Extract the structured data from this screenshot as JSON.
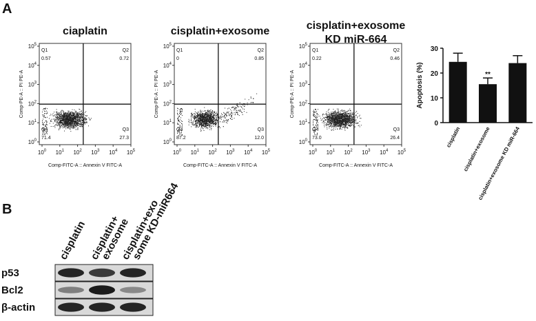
{
  "panel_labels": [
    "A",
    "B"
  ],
  "flow_plots": {
    "x_axis_label": "Comp-FITC-A :: Annexin V FITC-A",
    "y_axis_label": "Comp-PE-A :: PI PE-A",
    "tick_base": "10",
    "tick_exponents": [
      0,
      1,
      2,
      3,
      4,
      5
    ],
    "plots": [
      {
        "title": [
          "ciaplatin"
        ],
        "quadrants": [
          {
            "name": "Q1",
            "value": "0.57"
          },
          {
            "name": "Q2",
            "value": "0.72"
          },
          {
            "name": "Q4",
            "value": "71.4"
          },
          {
            "name": "Q3",
            "value": "27.3"
          }
        ]
      },
      {
        "title": [
          "cisplatin+exosome"
        ],
        "quadrants": [
          {
            "name": "Q1",
            "value": "0"
          },
          {
            "name": "Q2",
            "value": "0.85"
          },
          {
            "name": "Q4",
            "value": "87.2"
          },
          {
            "name": "Q3",
            "value": "12.0"
          }
        ]
      },
      {
        "title": [
          "cisplatin+exosome",
          "KD miR-664"
        ],
        "quadrants": [
          {
            "name": "Q1",
            "value": "0.22"
          },
          {
            "name": "Q2",
            "value": "0.46"
          },
          {
            "name": "Q4",
            "value": "73.0"
          },
          {
            "name": "Q3",
            "value": "26.4"
          }
        ]
      }
    ]
  },
  "chart_data": {
    "type": "bar",
    "y_label": "Apoptosis (%)",
    "categories": [
      "cisplatin",
      "cisplatin+exosome",
      "cisplatin+exosome KD miR-664"
    ],
    "values": [
      24.5,
      15.5,
      24
    ],
    "errors": [
      3.5,
      2.5,
      3
    ],
    "color": "#111111",
    "annotation": "**",
    "ylim": [
      0,
      30
    ],
    "yticks": [
      0,
      10,
      20,
      30
    ]
  },
  "western_blot": {
    "columns": [
      [
        "cisplatin"
      ],
      [
        "cisplatin+",
        "exosome"
      ],
      [
        "cisplatin+exo",
        "some KD-miR664"
      ]
    ],
    "rows": [
      "p53",
      "Bcl2",
      "β-actin"
    ]
  }
}
